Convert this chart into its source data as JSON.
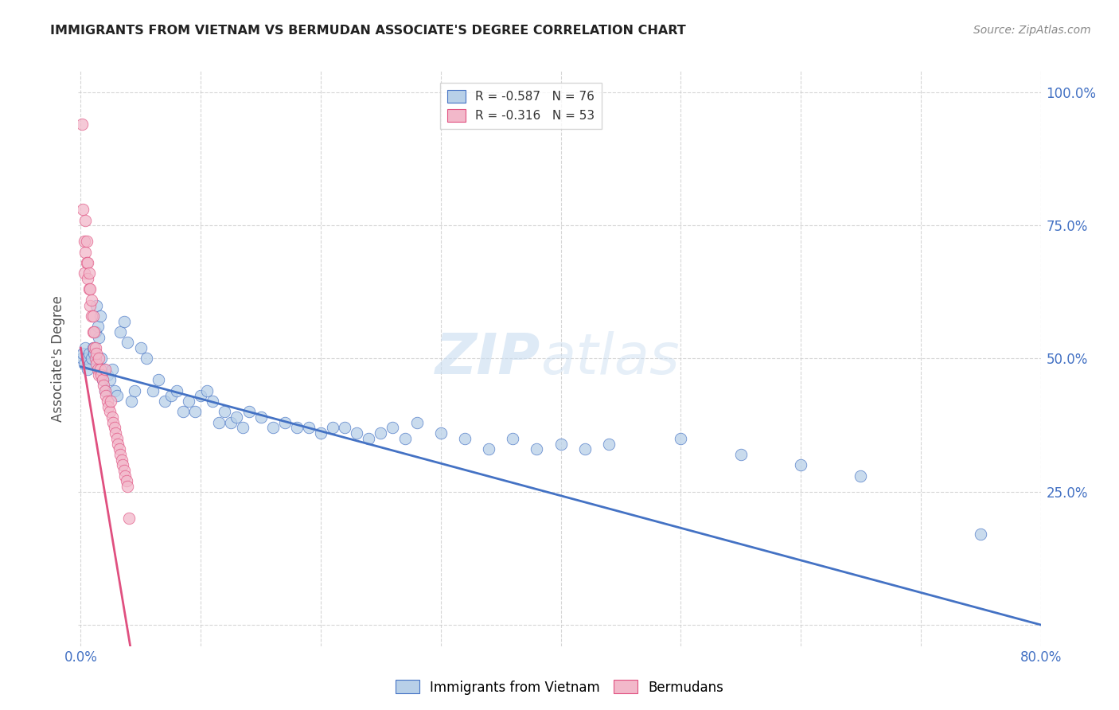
{
  "title": "IMMIGRANTS FROM VIETNAM VS BERMUDAN ASSOCIATE'S DEGREE CORRELATION CHART",
  "source": "Source: ZipAtlas.com",
  "ylabel": "Associate's Degree",
  "legend_blue_r": "-0.587",
  "legend_blue_n": "76",
  "legend_pink_r": "-0.316",
  "legend_pink_n": "53",
  "legend_blue_label": "Immigrants from Vietnam",
  "legend_pink_label": "Bermudans",
  "blue_color": "#b8d0e8",
  "blue_line_color": "#4472c4",
  "pink_color": "#f2b8ca",
  "pink_line_color": "#e05080",
  "blue_scatter_x": [
    0.001,
    0.002,
    0.003,
    0.004,
    0.005,
    0.006,
    0.007,
    0.008,
    0.009,
    0.01,
    0.011,
    0.012,
    0.013,
    0.014,
    0.015,
    0.016,
    0.017,
    0.018,
    0.019,
    0.02,
    0.022,
    0.024,
    0.026,
    0.028,
    0.03,
    0.033,
    0.036,
    0.039,
    0.042,
    0.045,
    0.05,
    0.055,
    0.06,
    0.065,
    0.07,
    0.075,
    0.08,
    0.085,
    0.09,
    0.095,
    0.1,
    0.105,
    0.11,
    0.115,
    0.12,
    0.125,
    0.13,
    0.135,
    0.14,
    0.15,
    0.16,
    0.17,
    0.18,
    0.19,
    0.2,
    0.21,
    0.22,
    0.23,
    0.24,
    0.25,
    0.26,
    0.27,
    0.28,
    0.3,
    0.32,
    0.34,
    0.36,
    0.38,
    0.4,
    0.42,
    0.44,
    0.5,
    0.55,
    0.6,
    0.65,
    0.75
  ],
  "blue_scatter_y": [
    0.5,
    0.51,
    0.49,
    0.52,
    0.5,
    0.48,
    0.51,
    0.49,
    0.5,
    0.52,
    0.51,
    0.55,
    0.6,
    0.56,
    0.54,
    0.58,
    0.5,
    0.46,
    0.48,
    0.44,
    0.47,
    0.46,
    0.48,
    0.44,
    0.43,
    0.55,
    0.57,
    0.53,
    0.42,
    0.44,
    0.52,
    0.5,
    0.44,
    0.46,
    0.42,
    0.43,
    0.44,
    0.4,
    0.42,
    0.4,
    0.43,
    0.44,
    0.42,
    0.38,
    0.4,
    0.38,
    0.39,
    0.37,
    0.4,
    0.39,
    0.37,
    0.38,
    0.37,
    0.37,
    0.36,
    0.37,
    0.37,
    0.36,
    0.35,
    0.36,
    0.37,
    0.35,
    0.38,
    0.36,
    0.35,
    0.33,
    0.35,
    0.33,
    0.34,
    0.33,
    0.34,
    0.35,
    0.32,
    0.3,
    0.28,
    0.17
  ],
  "pink_scatter_x": [
    0.001,
    0.002,
    0.003,
    0.003,
    0.004,
    0.004,
    0.005,
    0.005,
    0.006,
    0.006,
    0.007,
    0.007,
    0.008,
    0.008,
    0.009,
    0.009,
    0.01,
    0.01,
    0.011,
    0.011,
    0.012,
    0.012,
    0.013,
    0.013,
    0.014,
    0.015,
    0.015,
    0.016,
    0.017,
    0.018,
    0.019,
    0.02,
    0.02,
    0.021,
    0.022,
    0.023,
    0.024,
    0.025,
    0.026,
    0.027,
    0.028,
    0.029,
    0.03,
    0.031,
    0.032,
    0.033,
    0.034,
    0.035,
    0.036,
    0.037,
    0.038,
    0.039,
    0.04
  ],
  "pink_scatter_y": [
    0.94,
    0.78,
    0.72,
    0.66,
    0.7,
    0.76,
    0.68,
    0.72,
    0.65,
    0.68,
    0.63,
    0.66,
    0.6,
    0.63,
    0.58,
    0.61,
    0.55,
    0.58,
    0.52,
    0.55,
    0.5,
    0.52,
    0.49,
    0.51,
    0.48,
    0.47,
    0.5,
    0.48,
    0.47,
    0.46,
    0.45,
    0.44,
    0.48,
    0.43,
    0.42,
    0.41,
    0.4,
    0.42,
    0.39,
    0.38,
    0.37,
    0.36,
    0.35,
    0.34,
    0.33,
    0.32,
    0.31,
    0.3,
    0.29,
    0.28,
    0.27,
    0.26,
    0.2
  ],
  "blue_line_x": [
    0.0,
    0.8
  ],
  "blue_line_y": [
    0.485,
    0.0
  ],
  "pink_line_x": [
    0.0,
    0.042
  ],
  "pink_line_y": [
    0.52,
    -0.05
  ],
  "xlim": [
    -0.002,
    0.8
  ],
  "ylim": [
    -0.04,
    1.04
  ],
  "x_tick_positions": [
    0.0,
    0.1,
    0.2,
    0.3,
    0.4,
    0.5,
    0.6,
    0.7,
    0.8
  ],
  "y_tick_positions": [
    0.0,
    0.25,
    0.5,
    0.75,
    1.0
  ],
  "right_y_labels": [
    "",
    "25.0%",
    "50.0%",
    "75.0%",
    "100.0%"
  ],
  "watermark_zip": "ZIP",
  "watermark_atlas": "atlas",
  "background_color": "#ffffff",
  "grid_color": "#cccccc",
  "title_color": "#222222",
  "source_color": "#888888",
  "axis_label_color": "#555555",
  "tick_label_color": "#4472c4"
}
